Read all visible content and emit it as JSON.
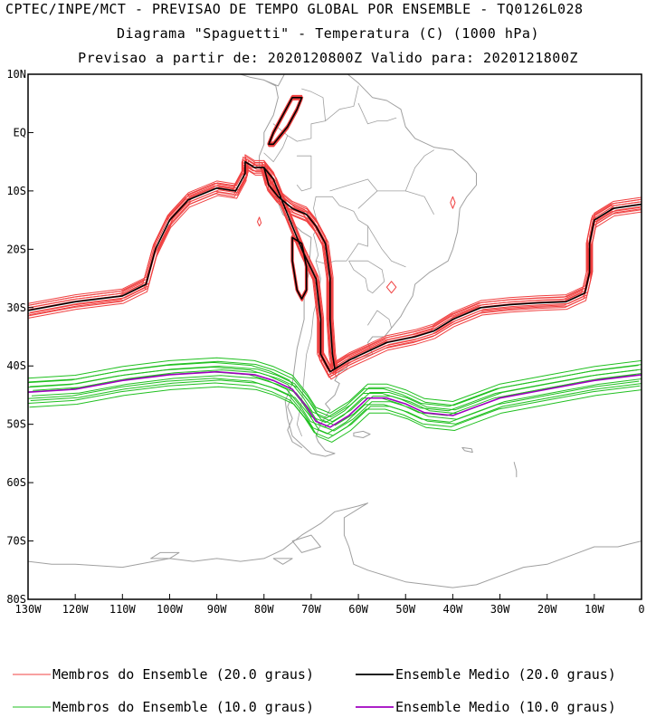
{
  "title": {
    "line1": "CPTEC/INPE/MCT - PREVISAO DE TEMPO GLOBAL POR ENSEMBLE - TQ0126L028",
    "line2": "Diagrama \"Spaguetti\" - Temperatura (C) (1000 hPa)",
    "line3": "Previsao a partir de: 2020120800Z  Valido para: 2020121800Z"
  },
  "map": {
    "lon_range": [
      -130,
      0
    ],
    "lat_range": [
      -80,
      10
    ],
    "lat_ticks": [
      {
        "value": 10,
        "label": "10N"
      },
      {
        "value": 0,
        "label": "EQ"
      },
      {
        "value": -10,
        "label": "10S"
      },
      {
        "value": -20,
        "label": "20S"
      },
      {
        "value": -30,
        "label": "30S"
      },
      {
        "value": -40,
        "label": "40S"
      },
      {
        "value": -50,
        "label": "50S"
      },
      {
        "value": -60,
        "label": "60S"
      },
      {
        "value": -70,
        "label": "70S"
      },
      {
        "value": -80,
        "label": "80S"
      }
    ],
    "lon_ticks": [
      {
        "value": -130,
        "label": "130W"
      },
      {
        "value": -120,
        "label": "120W"
      },
      {
        "value": -110,
        "label": "110W"
      },
      {
        "value": -100,
        "label": "100W"
      },
      {
        "value": -90,
        "label": "90W"
      },
      {
        "value": -80,
        "label": "80W"
      },
      {
        "value": -70,
        "label": "70W"
      },
      {
        "value": -60,
        "label": "60W"
      },
      {
        "value": -50,
        "label": "50W"
      },
      {
        "value": -40,
        "label": "40W"
      },
      {
        "value": -30,
        "label": "30W"
      },
      {
        "value": -20,
        "label": "20W"
      },
      {
        "value": -10,
        "label": "10W"
      },
      {
        "value": 0,
        "label": "0"
      }
    ],
    "colors": {
      "coastline": "#a0a0a0",
      "member_20": "#f04040",
      "mean_20": "#000000",
      "member_10": "#20c020",
      "mean_10": "#a000c0"
    }
  },
  "contours": {
    "mean_20_west": [
      [
        -130,
        -30.5
      ],
      [
        -120,
        -29
      ],
      [
        -110,
        -28
      ],
      [
        -105,
        -26
      ],
      [
        -103,
        -20
      ],
      [
        -100,
        -15
      ],
      [
        -96,
        -11.5
      ],
      [
        -90,
        -9.5
      ],
      [
        -86,
        -10
      ],
      [
        -84,
        -7
      ],
      [
        -84,
        -5
      ],
      [
        -82,
        -6
      ],
      [
        -80,
        -6
      ],
      [
        -79,
        -9
      ],
      [
        -77,
        -11
      ],
      [
        -74,
        -13
      ],
      [
        -71,
        -14
      ],
      [
        -69,
        -16
      ],
      [
        -67,
        -19
      ],
      [
        -66,
        -25
      ],
      [
        -66,
        -32
      ],
      [
        -65.5,
        -38
      ],
      [
        -65,
        -40.5
      ]
    ],
    "mean_20_east": [
      [
        -65,
        -40.5
      ],
      [
        -62,
        -39
      ],
      [
        -58,
        -37.5
      ],
      [
        -54,
        -36
      ],
      [
        -48,
        -35
      ],
      [
        -44,
        -34
      ],
      [
        -40,
        -32
      ],
      [
        -34,
        -30
      ],
      [
        -28,
        -29.5
      ],
      [
        -22,
        -29.2
      ],
      [
        -16,
        -29
      ],
      [
        -12,
        -27.5
      ],
      [
        -11,
        -24
      ],
      [
        -11,
        -19
      ],
      [
        -10,
        -15
      ],
      [
        -6,
        -13
      ],
      [
        0,
        -12.3
      ]
    ],
    "mean_20_andes_loop": [
      [
        -80,
        -6
      ],
      [
        -78,
        -8
      ],
      [
        -75,
        -14
      ],
      [
        -72,
        -20
      ],
      [
        -69,
        -25
      ],
      [
        -68,
        -32
      ],
      [
        -68,
        -38
      ],
      [
        -66,
        -41
      ],
      [
        -65,
        -40.5
      ]
    ],
    "mean_20_island_north": [
      [
        -78,
        -2
      ],
      [
        -75,
        1
      ],
      [
        -73,
        4
      ],
      [
        -72,
        6
      ],
      [
        -74,
        6
      ],
      [
        -76,
        3
      ],
      [
        -78,
        0
      ],
      [
        -79,
        -2
      ],
      [
        -78,
        -2
      ]
    ],
    "mean_20_island_south": [
      [
        -74,
        -18
      ],
      [
        -72,
        -19
      ],
      [
        -71,
        -23
      ],
      [
        -71,
        -27
      ],
      [
        -72,
        -28.5
      ],
      [
        -73,
        -27
      ],
      [
        -74,
        -22
      ],
      [
        -74,
        -18
      ]
    ],
    "mean_10": [
      [
        -130,
        -44.5
      ],
      [
        -120,
        -44
      ],
      [
        -110,
        -42.5
      ],
      [
        -100,
        -41.5
      ],
      [
        -90,
        -41
      ],
      [
        -82,
        -41.5
      ],
      [
        -78,
        -42.5
      ],
      [
        -74,
        -44
      ],
      [
        -71,
        -47
      ],
      [
        -69,
        -49.5
      ],
      [
        -66,
        -50.5
      ],
      [
        -62,
        -48.5
      ],
      [
        -58,
        -45.5
      ],
      [
        -54,
        -45.5
      ],
      [
        -50,
        -46.5
      ],
      [
        -46,
        -48
      ],
      [
        -40,
        -48.5
      ],
      [
        -35,
        -47
      ],
      [
        -30,
        -45.5
      ],
      [
        -20,
        -44
      ],
      [
        -10,
        -42.5
      ],
      [
        0,
        -41.5
      ]
    ],
    "red_small_1": [
      [
        -81,
        -14.5
      ],
      [
        -80.6,
        -15.5
      ],
      [
        -81,
        -16
      ],
      [
        -81.4,
        -15.3
      ],
      [
        -81,
        -14.5
      ]
    ],
    "red_small_2": [
      [
        -53,
        -25.5
      ],
      [
        -52,
        -26.5
      ],
      [
        -53,
        -27.5
      ],
      [
        -54,
        -26.5
      ],
      [
        -53,
        -25.5
      ]
    ],
    "red_small_3": [
      [
        -40,
        -11
      ],
      [
        -39.5,
        -12
      ],
      [
        -40,
        -13
      ],
      [
        -40.5,
        -12
      ],
      [
        -40,
        -11
      ]
    ]
  },
  "coastlines": {
    "south_america": [
      [
        -80,
        9
      ],
      [
        -77,
        8
      ],
      [
        -75,
        11
      ],
      [
        -72,
        11.5
      ],
      [
        -70,
        12
      ],
      [
        -67,
        10.5
      ],
      [
        -63,
        10.5
      ],
      [
        -60,
        8.5
      ],
      [
        -57,
        6
      ],
      [
        -54,
        5.5
      ],
      [
        -51,
        4
      ],
      [
        -50,
        1
      ],
      [
        -48,
        -1
      ],
      [
        -44,
        -2.5
      ],
      [
        -40,
        -3
      ],
      [
        -37,
        -5
      ],
      [
        -35,
        -7
      ],
      [
        -35,
        -9
      ],
      [
        -37,
        -11
      ],
      [
        -38.5,
        -13
      ],
      [
        -39,
        -17
      ],
      [
        -40,
        -20
      ],
      [
        -41,
        -22
      ],
      [
        -43,
        -23
      ],
      [
        -45,
        -24
      ],
      [
        -48,
        -26
      ],
      [
        -48.5,
        -28
      ],
      [
        -50,
        -30
      ],
      [
        -51,
        -31.5
      ],
      [
        -53,
        -33.5
      ],
      [
        -54.5,
        -35
      ],
      [
        -57,
        -35
      ],
      [
        -58,
        -36
      ],
      [
        -57,
        -38
      ],
      [
        -62,
        -39
      ],
      [
        -62.5,
        -40.5
      ],
      [
        -64,
        -41
      ],
      [
        -65,
        -42.5
      ],
      [
        -64,
        -43
      ],
      [
        -65,
        -45
      ],
      [
        -67,
        -46.5
      ],
      [
        -66,
        -47.5
      ],
      [
        -68,
        -50
      ],
      [
        -69,
        -52
      ],
      [
        -68.5,
        -53
      ],
      [
        -67,
        -54.5
      ],
      [
        -65,
        -55
      ],
      [
        -67,
        -55.5
      ],
      [
        -70,
        -55
      ],
      [
        -72,
        -53.5
      ],
      [
        -74,
        -52
      ],
      [
        -75,
        -49
      ],
      [
        -75.5,
        -46
      ],
      [
        -74,
        -43
      ],
      [
        -73.5,
        -40
      ],
      [
        -73,
        -37
      ],
      [
        -71.5,
        -32
      ],
      [
        -71.5,
        -28
      ],
      [
        -70.5,
        -24
      ],
      [
        -70,
        -18
      ],
      [
        -72,
        -17
      ],
      [
        -76,
        -14
      ],
      [
        -77,
        -12
      ],
      [
        -79,
        -8
      ],
      [
        -81,
        -6
      ],
      [
        -81,
        -4
      ],
      [
        -80,
        -2
      ],
      [
        -80,
        0
      ],
      [
        -79,
        1.5
      ],
      [
        -78,
        3
      ],
      [
        -77,
        6
      ],
      [
        -77.5,
        8
      ],
      [
        -80,
        9
      ]
    ],
    "borders": [
      [
        [
          -69,
          -22
        ],
        [
          -67,
          -22.5
        ],
        [
          -65,
          -22
        ],
        [
          -62.5,
          -22
        ],
        [
          -60,
          -19
        ],
        [
          -58,
          -19.5
        ],
        [
          -58,
          -16
        ],
        [
          -60,
          -15
        ],
        [
          -61,
          -13.5
        ],
        [
          -64,
          -12.5
        ],
        [
          -65.5,
          -11
        ],
        [
          -69,
          -11
        ],
        [
          -69.5,
          -13
        ],
        [
          -68.5,
          -16
        ],
        [
          -69.5,
          -17.5
        ],
        [
          -69,
          -19
        ],
        [
          -68.5,
          -21
        ],
        [
          -69,
          -22
        ]
      ],
      [
        [
          -62,
          -22
        ],
        [
          -58,
          -22
        ],
        [
          -55,
          -23.5
        ],
        [
          -54.5,
          -25.5
        ],
        [
          -57,
          -27.5
        ],
        [
          -58,
          -27
        ],
        [
          -58.5,
          -25
        ],
        [
          -61,
          -23.5
        ],
        [
          -62,
          -22
        ]
      ],
      [
        [
          -73,
          -4
        ],
        [
          -70,
          -4
        ],
        [
          -70,
          -9.5
        ],
        [
          -72,
          -10
        ],
        [
          -73,
          -9
        ]
      ],
      [
        [
          -78,
          1.5
        ],
        [
          -75,
          -0.5
        ],
        [
          -73,
          -1.5
        ],
        [
          -70,
          -1
        ],
        [
          -70,
          1.5
        ],
        [
          -67,
          2
        ],
        [
          -67.5,
          6
        ],
        [
          -70,
          7
        ],
        [
          -72,
          7.5
        ]
      ],
      [
        [
          -80,
          -3.5
        ],
        [
          -78,
          -5
        ],
        [
          -76,
          -2.5
        ],
        [
          -75,
          -0.5
        ]
      ],
      [
        [
          -67,
          2
        ],
        [
          -64,
          4
        ],
        [
          -61,
          4.5
        ],
        [
          -60,
          8
        ]
      ],
      [
        [
          -60,
          5
        ],
        [
          -58,
          1.5
        ],
        [
          -56,
          2
        ],
        [
          -54,
          2
        ],
        [
          -52,
          2.5
        ]
      ],
      [
        [
          -69,
          -22
        ],
        [
          -68,
          -25
        ],
        [
          -68.5,
          -28
        ],
        [
          -69.5,
          -31
        ],
        [
          -70,
          -35
        ],
        [
          -71,
          -38
        ],
        [
          -71.5,
          -42
        ],
        [
          -72,
          -46
        ],
        [
          -73,
          -50
        ],
        [
          -72,
          -52
        ]
      ],
      [
        [
          -58,
          -33
        ],
        [
          -56,
          -30.5
        ],
        [
          -53.5,
          -32
        ],
        [
          -53,
          -33.5
        ]
      ],
      [
        [
          -60,
          -13
        ],
        [
          -56,
          -10
        ],
        [
          -50,
          -10
        ],
        [
          -46,
          -11
        ],
        [
          -44,
          -14
        ]
      ],
      [
        [
          -58,
          -16
        ],
        [
          -55,
          -20
        ],
        [
          -53,
          -22
        ],
        [
          -50,
          -23
        ]
      ],
      [
        [
          -50,
          -10
        ],
        [
          -48,
          -6
        ],
        [
          -46,
          -4
        ],
        [
          -44,
          -3
        ]
      ],
      [
        [
          -56,
          -10
        ],
        [
          -58,
          -8
        ],
        [
          -62,
          -9
        ],
        [
          -66,
          -10
        ]
      ]
    ],
    "central_america": [
      [
        -80,
        9
      ],
      [
        -83,
        9.5
      ],
      [
        -85,
        10
      ],
      [
        -86,
        12
      ],
      [
        -88,
        13.5
      ],
      [
        -90,
        14
      ],
      [
        -92,
        15
      ]
    ],
    "antarctica": [
      [
        -130,
        -73.5
      ],
      [
        -125,
        -74
      ],
      [
        -120,
        -74
      ],
      [
        -110,
        -74.5
      ],
      [
        -100,
        -73
      ],
      [
        -95,
        -73.5
      ],
      [
        -90,
        -73
      ],
      [
        -85,
        -73.5
      ],
      [
        -80,
        -73
      ],
      [
        -76,
        -71.5
      ],
      [
        -72,
        -69
      ],
      [
        -68,
        -67
      ],
      [
        -65,
        -65
      ],
      [
        -60,
        -64
      ],
      [
        -58,
        -63.5
      ],
      [
        -60,
        -64.5
      ],
      [
        -63,
        -66
      ],
      [
        -63,
        -69
      ],
      [
        -62,
        -71
      ],
      [
        -61,
        -74
      ],
      [
        -58,
        -75
      ],
      [
        -50,
        -77
      ],
      [
        -40,
        -78
      ],
      [
        -35,
        -77.5
      ],
      [
        -30,
        -76
      ],
      [
        -25,
        -74.5
      ],
      [
        -20,
        -74
      ],
      [
        -15,
        -72.5
      ],
      [
        -10,
        -71
      ],
      [
        -5,
        -71
      ],
      [
        0,
        -70
      ]
    ],
    "antarctic_islands": [
      [
        [
          -70,
          -69
        ],
        [
          -68,
          -71
        ],
        [
          -72,
          -72
        ],
        [
          -74,
          -70
        ],
        [
          -70,
          -69
        ]
      ],
      [
        [
          -98,
          -72
        ],
        [
          -102,
          -72
        ],
        [
          -104,
          -73
        ],
        [
          -100,
          -73
        ],
        [
          -98,
          -72
        ]
      ],
      [
        [
          -74,
          -73
        ],
        [
          -76,
          -74
        ],
        [
          -78,
          -73
        ],
        [
          -74,
          -73
        ]
      ]
    ],
    "falklands": [
      [
        -61,
        -51.5
      ],
      [
        -59,
        -51.2
      ],
      [
        -57.5,
        -51.7
      ],
      [
        -59,
        -52.3
      ],
      [
        -61,
        -52
      ],
      [
        -61,
        -51.5
      ]
    ],
    "south_georgia": [
      [
        -38,
        -54
      ],
      [
        -36,
        -54.2
      ],
      [
        -35.8,
        -54.8
      ],
      [
        -37.5,
        -54.5
      ],
      [
        -38,
        -54
      ]
    ],
    "south_sandwich": [
      [
        -27,
        -56.5
      ],
      [
        -26.5,
        -58
      ],
      [
        -26.5,
        -59
      ]
    ],
    "chile_islands": [
      [
        -74,
        -45
      ],
      [
        -75,
        -47
      ],
      [
        -74,
        -49
      ],
      [
        -75,
        -51
      ],
      [
        -74,
        -53
      ],
      [
        -72,
        -54
      ]
    ]
  },
  "legend": {
    "items": [
      {
        "label": "Membros do Ensemble (20.0 graus)",
        "color": "#f04040"
      },
      {
        "label": "Ensemble Medio (20.0 graus)",
        "color": "#000000"
      },
      {
        "label": "Membros do Ensemble (10.0 graus)",
        "color": "#20c020"
      },
      {
        "label": "Ensemble Medio (10.0 graus)",
        "color": "#a000c0"
      }
    ]
  }
}
